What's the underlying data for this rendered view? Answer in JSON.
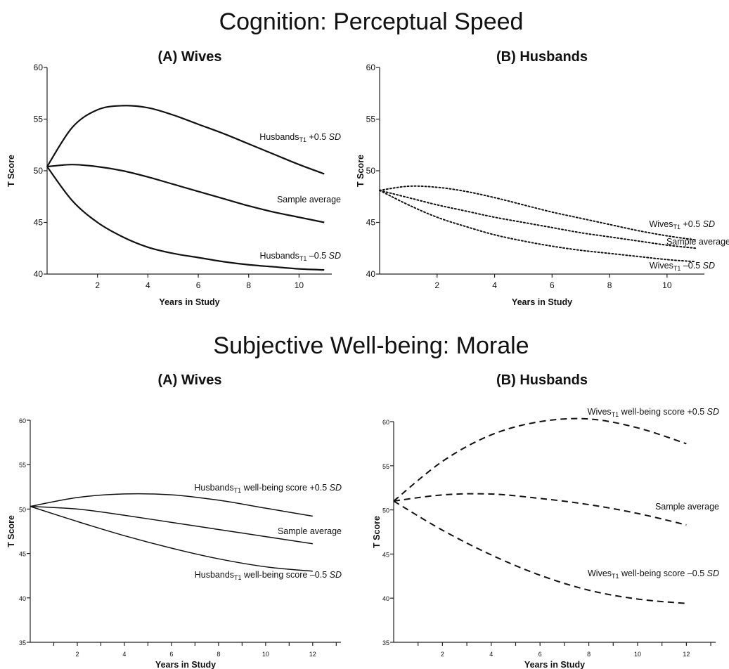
{
  "sections": [
    {
      "title": "Cognition: Perceptual Speed"
    },
    {
      "title": "Subjective Well-being: Morale"
    }
  ],
  "chart_data": [
    {
      "type": "line",
      "section": "Cognition: Perceptual Speed",
      "title": "(A) Wives",
      "xlabel": "Years in Study",
      "ylabel": "T Score",
      "xlim": [
        0,
        11.3
      ],
      "ylim": [
        40,
        60
      ],
      "xticks": [
        2,
        4,
        6,
        8,
        10
      ],
      "yticks": [
        40,
        45,
        50,
        55,
        60
      ],
      "line_style": "solid",
      "series": [
        {
          "label_main": "Husbands",
          "label_sub": "T1",
          "label_rest": " +0.5 ",
          "label_sd": "SD",
          "x": [
            0,
            1,
            2,
            3,
            4,
            5,
            6,
            7,
            8,
            9,
            10,
            11
          ],
          "y": [
            50.4,
            54.2,
            55.9,
            56.3,
            56.1,
            55.4,
            54.5,
            53.6,
            52.6,
            51.6,
            50.6,
            49.7
          ]
        },
        {
          "label_main": "Sample average",
          "label_sub": "",
          "label_rest": "",
          "label_sd": "",
          "x": [
            0,
            1,
            2,
            3,
            4,
            5,
            6,
            7,
            8,
            9,
            10,
            11
          ],
          "y": [
            50.4,
            50.6,
            50.4,
            50.0,
            49.4,
            48.7,
            48.0,
            47.3,
            46.6,
            46.0,
            45.5,
            45.0
          ]
        },
        {
          "label_main": "Husbands",
          "label_sub": "T1",
          "label_rest": " –0.5 ",
          "label_sd": "SD",
          "x": [
            0,
            1,
            2,
            3,
            4,
            5,
            6,
            7,
            8,
            9,
            10,
            11
          ],
          "y": [
            50.4,
            47.1,
            45.0,
            43.6,
            42.6,
            42.0,
            41.6,
            41.2,
            40.9,
            40.7,
            40.5,
            40.4
          ]
        }
      ]
    },
    {
      "type": "line",
      "section": "Cognition: Perceptual Speed",
      "title": "(B) Husbands",
      "xlabel": "Years in Study",
      "ylabel": "T Score",
      "xlim": [
        0,
        11.3
      ],
      "ylim": [
        40,
        60
      ],
      "xticks": [
        2,
        4,
        6,
        8,
        10
      ],
      "yticks": [
        40,
        45,
        50,
        55,
        60
      ],
      "line_style": "dotted",
      "series": [
        {
          "label_main": "Wives",
          "label_sub": "T1",
          "label_rest": " +0.5 ",
          "label_sd": "SD",
          "x": [
            0,
            1,
            2,
            3,
            4,
            5,
            6,
            7,
            8,
            9,
            10,
            11
          ],
          "y": [
            48.1,
            48.5,
            48.4,
            48.0,
            47.4,
            46.7,
            46.0,
            45.4,
            44.8,
            44.2,
            43.7,
            43.3
          ]
        },
        {
          "label_main": "Sample average",
          "label_sub": "",
          "label_rest": "",
          "label_sd": "",
          "x": [
            0,
            1,
            2,
            3,
            4,
            5,
            6,
            7,
            8,
            9,
            10,
            11
          ],
          "y": [
            48.1,
            47.4,
            46.7,
            46.1,
            45.5,
            45.0,
            44.5,
            44.0,
            43.6,
            43.2,
            42.8,
            42.5
          ]
        },
        {
          "label_main": "Wives",
          "label_sub": "T1",
          "label_rest": " –0.5 ",
          "label_sd": "SD",
          "x": [
            0,
            1,
            2,
            3,
            4,
            5,
            6,
            7,
            8,
            9,
            10,
            11
          ],
          "y": [
            48.1,
            46.7,
            45.5,
            44.6,
            43.8,
            43.2,
            42.7,
            42.3,
            42.0,
            41.7,
            41.4,
            41.2
          ]
        }
      ]
    },
    {
      "type": "line",
      "section": "Subjective Well-being: Morale",
      "title": "(A) Wives",
      "xlabel": "Years in Study",
      "ylabel": "T Score",
      "xlim": [
        0,
        13.2
      ],
      "ylim": [
        35,
        60
      ],
      "xticks": [
        2,
        4,
        6,
        8,
        10,
        12
      ],
      "yticks": [
        35,
        40,
        45,
        50,
        55,
        60
      ],
      "minor_xticks": [
        1,
        3,
        5,
        7,
        9,
        11,
        13
      ],
      "small_ticks": true,
      "line_style": "solid",
      "series": [
        {
          "label_main": "Husbands",
          "label_sub": "T1",
          "label_rest": " well-being  score +0.5 ",
          "label_sd": "SD",
          "x": [
            0,
            2,
            4,
            6,
            8,
            10,
            12
          ],
          "y": [
            50.3,
            51.3,
            51.7,
            51.6,
            51.0,
            50.1,
            49.2
          ]
        },
        {
          "label_main": "Sample average",
          "label_sub": "",
          "label_rest": "",
          "label_sd": "",
          "x": [
            0,
            2,
            4,
            6,
            8,
            10,
            12
          ],
          "y": [
            50.3,
            50.0,
            49.3,
            48.5,
            47.7,
            46.9,
            46.1
          ]
        },
        {
          "label_main": "Husbands",
          "label_sub": "T1",
          "label_rest": " well-being  score –0.5 ",
          "label_sd": "SD",
          "x": [
            0,
            2,
            4,
            6,
            8,
            10,
            12
          ],
          "y": [
            50.3,
            48.6,
            47.0,
            45.6,
            44.4,
            43.5,
            43.0
          ]
        }
      ]
    },
    {
      "type": "line",
      "section": "Subjective Well-being: Morale",
      "title": "(B) Husbands",
      "xlabel": "Years in Study",
      "ylabel": "T Score",
      "xlim": [
        0,
        13.2
      ],
      "ylim": [
        35,
        60
      ],
      "xticks": [
        2,
        4,
        6,
        8,
        10,
        12
      ],
      "yticks": [
        35,
        40,
        45,
        50,
        55,
        60
      ],
      "minor_xticks": [
        1,
        3,
        5,
        7,
        9,
        11,
        13
      ],
      "small_ticks": true,
      "line_style": "dashed",
      "series": [
        {
          "label_main": "Wives",
          "label_sub": "T1",
          "label_rest": " well-being  score +0.5 ",
          "label_sd": "SD",
          "x": [
            0,
            2,
            4,
            6,
            8,
            10,
            12
          ],
          "y": [
            51.0,
            55.5,
            58.5,
            60.0,
            60.3,
            59.3,
            57.5
          ]
        },
        {
          "label_main": "Sample average",
          "label_sub": "",
          "label_rest": "",
          "label_sd": "",
          "x": [
            0,
            2,
            4,
            6,
            8,
            10,
            12
          ],
          "y": [
            51.0,
            51.7,
            51.8,
            51.3,
            50.6,
            49.6,
            48.3
          ]
        },
        {
          "label_main": "Wives",
          "label_sub": "T1",
          "label_rest": " well-being  score –0.5 ",
          "label_sd": "SD",
          "x": [
            0,
            2,
            4,
            6,
            8,
            10,
            12
          ],
          "y": [
            51.0,
            47.7,
            44.9,
            42.6,
            40.9,
            39.9,
            39.4
          ]
        }
      ]
    }
  ]
}
